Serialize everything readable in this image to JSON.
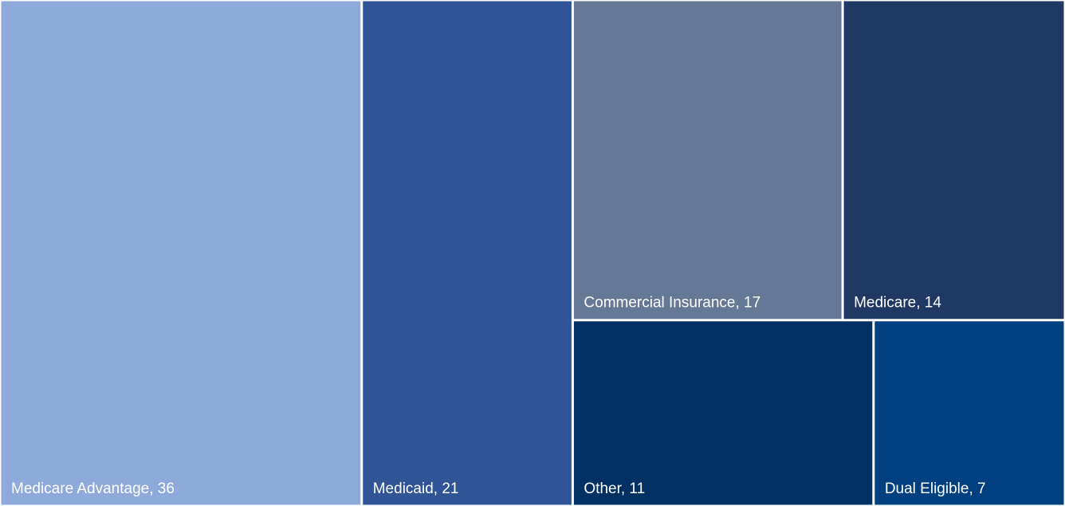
{
  "chart_data": {
    "type": "treemap",
    "values": [
      36,
      21,
      17,
      14,
      11,
      7
    ],
    "value_labels": [
      "Medicare Advantage, 36",
      "Medicaid, 21",
      "Commercial Insurance, 17",
      "Medicare, 14",
      "Other, 11",
      "Dual Eligible, 7"
    ],
    "colors": [
      "#8eaadb",
      "#2f5597",
      "#657896",
      "#203864",
      "#003162",
      "#003f80"
    ]
  }
}
